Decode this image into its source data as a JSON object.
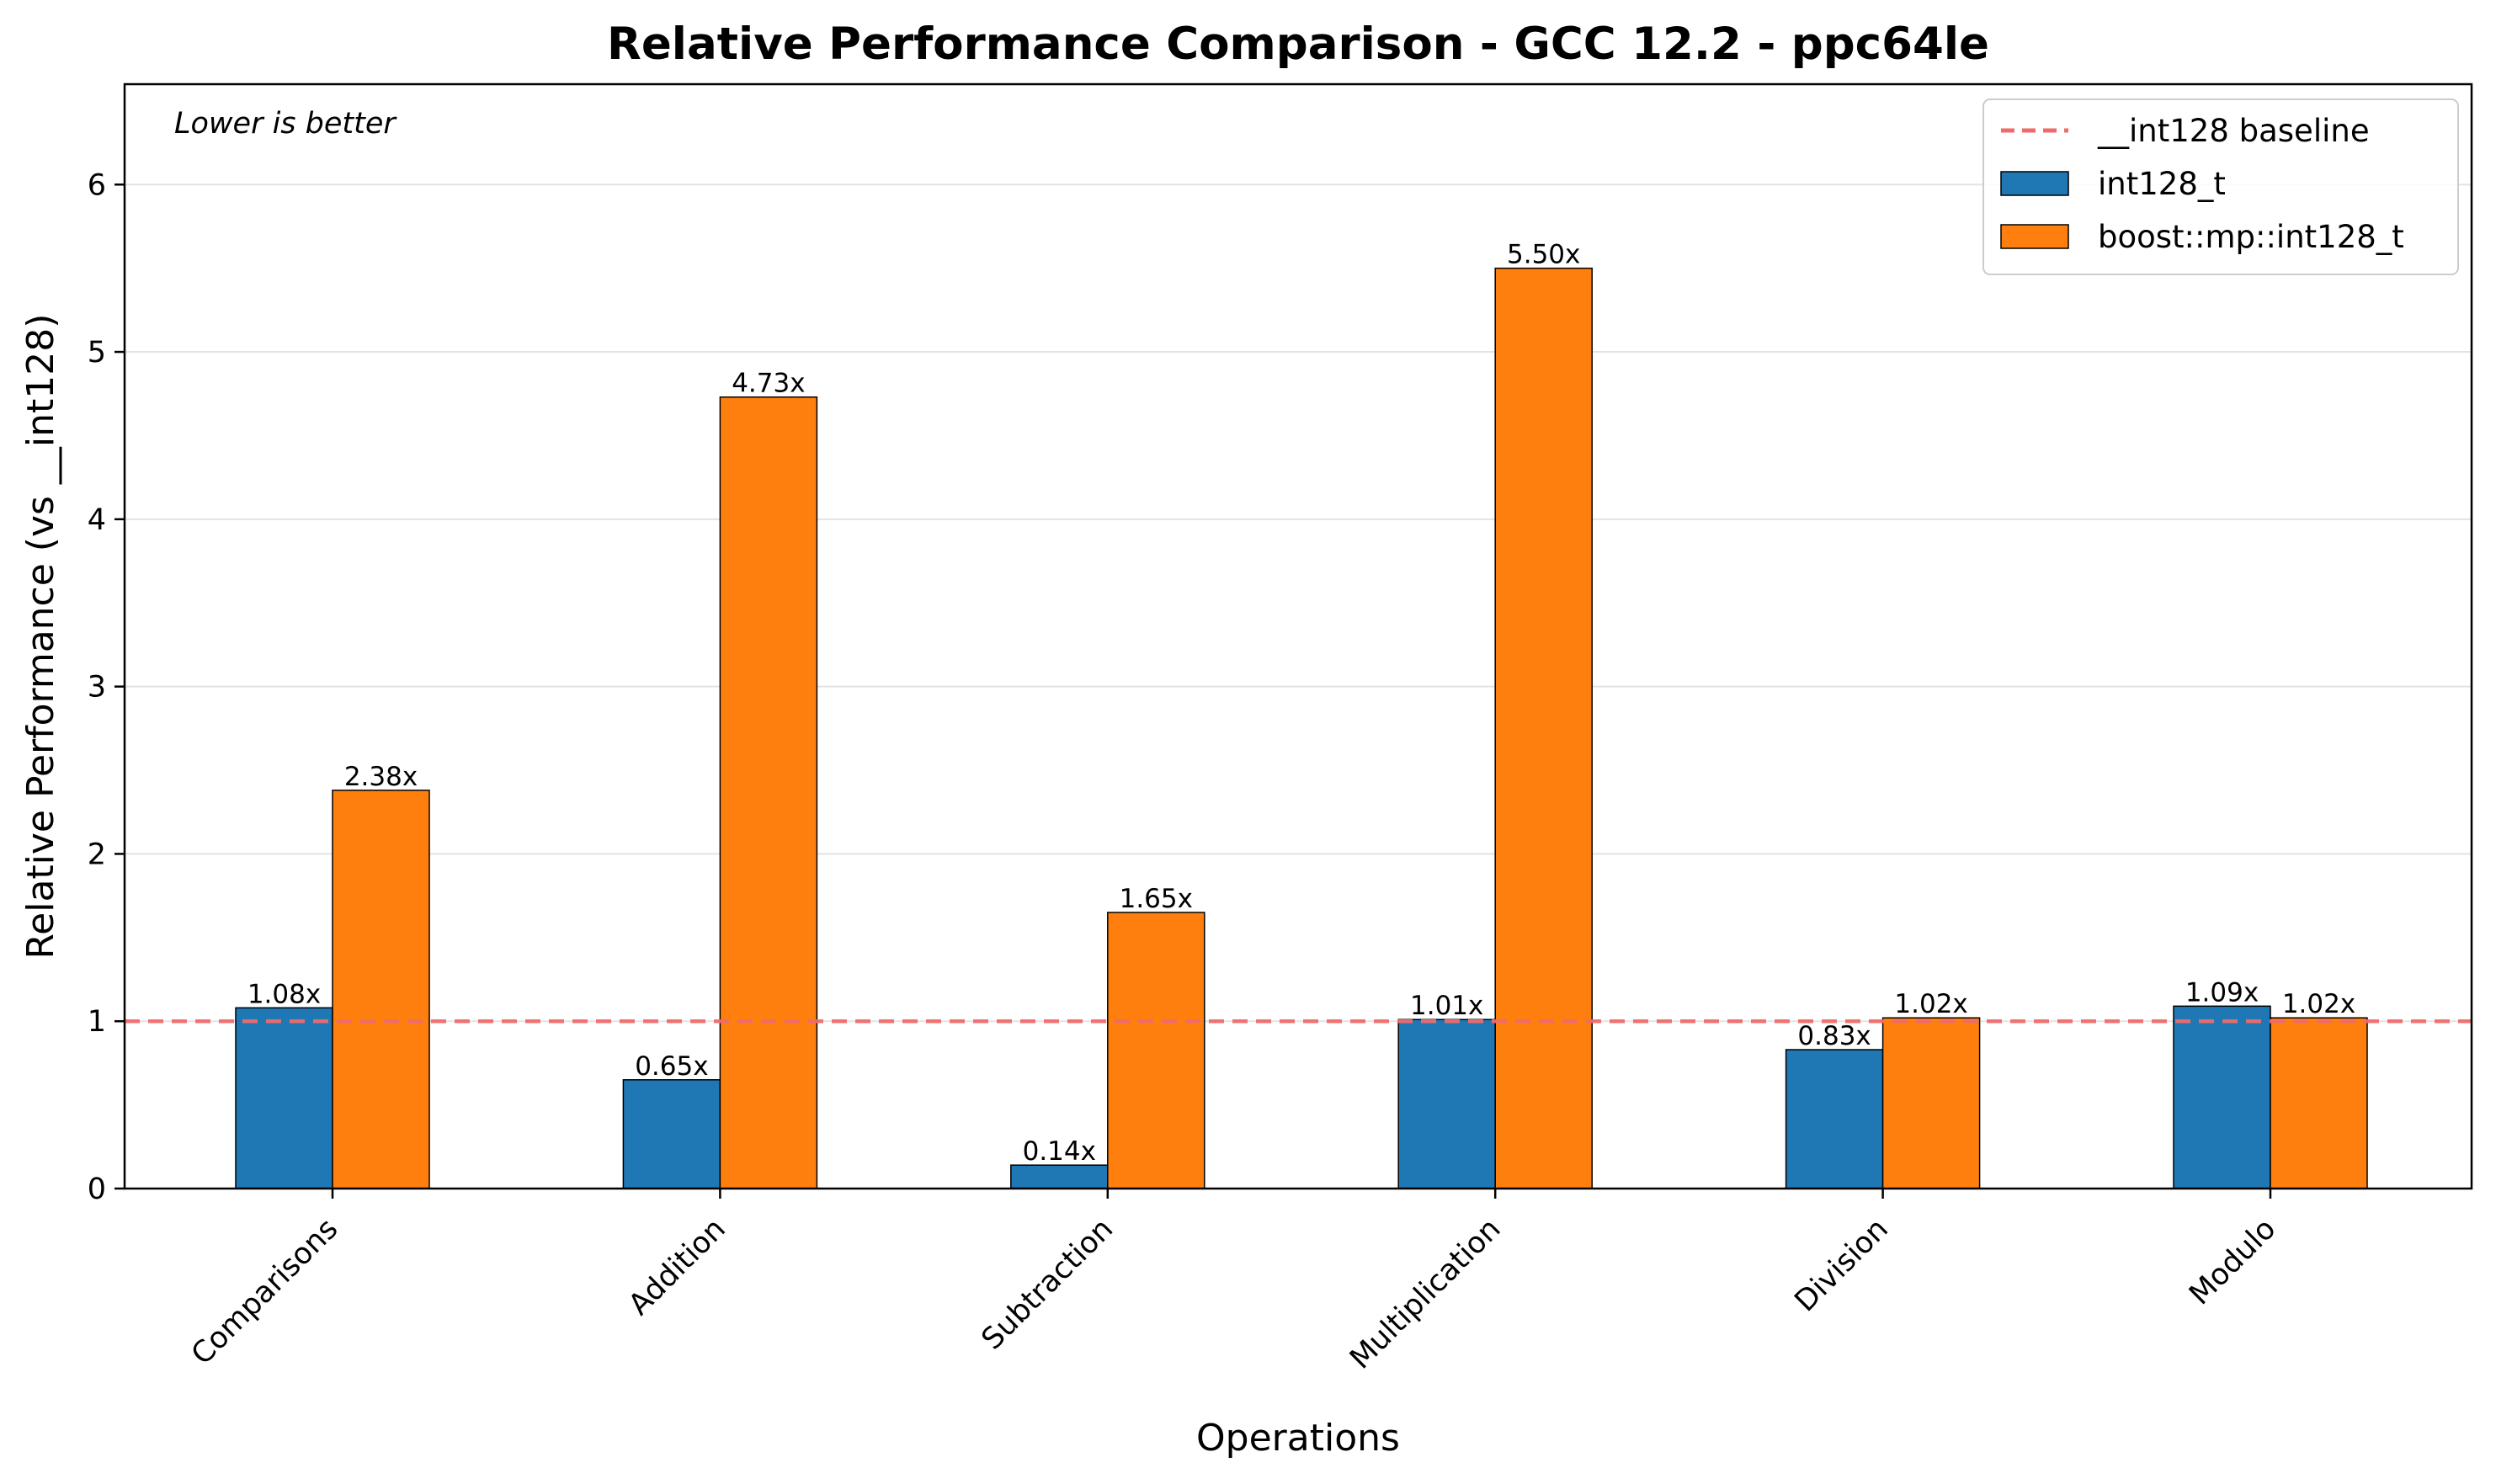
{
  "chart_data": {
    "type": "bar",
    "title": "Relative Performance Comparison - GCC 12.2 - ppc64le",
    "xlabel": "Operations",
    "ylabel": "Relative Performance (vs __int128)",
    "annotation": "Lower is better",
    "categories": [
      "Comparisons",
      "Addition",
      "Subtraction",
      "Multiplication",
      "Division",
      "Modulo"
    ],
    "series": [
      {
        "name": "int128_t",
        "values": [
          1.08,
          0.65,
          0.14,
          1.01,
          0.83,
          1.09
        ],
        "labels": [
          "1.08x",
          "0.65x",
          "0.14x",
          "1.01x",
          "0.83x",
          "1.09x"
        ],
        "color": "#1f77b4"
      },
      {
        "name": "boost::mp::int128_t",
        "values": [
          2.38,
          4.73,
          1.65,
          5.5,
          1.02,
          1.02
        ],
        "labels": [
          "2.38x",
          "4.73x",
          "1.65x",
          "5.50x",
          "1.02x",
          "1.02x"
        ],
        "color": "#ff7f0e"
      }
    ],
    "baseline": {
      "name": "__int128 baseline",
      "value": 1.0,
      "color": "#ef6b6b"
    },
    "ylim": [
      0,
      6.6
    ],
    "yticks": [
      "0",
      "1",
      "2",
      "3",
      "4",
      "5",
      "6"
    ],
    "grid": "horizontal",
    "legend": "top-right"
  }
}
